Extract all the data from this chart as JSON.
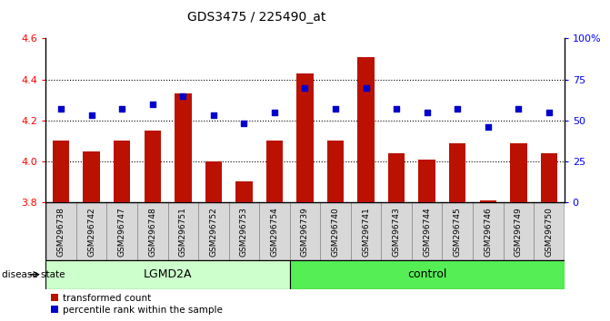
{
  "title": "GDS3475 / 225490_at",
  "samples": [
    "GSM296738",
    "GSM296742",
    "GSM296747",
    "GSM296748",
    "GSM296751",
    "GSM296752",
    "GSM296753",
    "GSM296754",
    "GSM296739",
    "GSM296740",
    "GSM296741",
    "GSM296743",
    "GSM296744",
    "GSM296745",
    "GSM296746",
    "GSM296749",
    "GSM296750"
  ],
  "transformed_count": [
    4.1,
    4.05,
    4.1,
    4.15,
    4.33,
    4.0,
    3.9,
    4.1,
    4.43,
    4.1,
    4.51,
    4.04,
    4.01,
    4.09,
    3.81,
    4.09,
    4.04
  ],
  "percentile_rank": [
    57,
    53,
    57,
    60,
    65,
    53,
    48,
    55,
    70,
    57,
    70,
    57,
    55,
    57,
    46,
    57,
    55
  ],
  "groups": [
    {
      "name": "LGMD2A",
      "start": 0,
      "end": 7,
      "color": "#ccffcc"
    },
    {
      "name": "control",
      "start": 8,
      "end": 16,
      "color": "#55ee55"
    }
  ],
  "ylim_left": [
    3.8,
    4.6
  ],
  "ylim_right": [
    0,
    100
  ],
  "bar_color": "#bb1100",
  "dot_color": "#0000cc",
  "bar_width": 0.55,
  "baseline": 3.8,
  "left_yticks": [
    3.8,
    4.0,
    4.2,
    4.4,
    4.6
  ],
  "right_yticks": [
    0,
    25,
    50,
    75,
    100
  ],
  "right_yticklabels": [
    "0",
    "25",
    "50",
    "75",
    "100%"
  ],
  "grid_yvals": [
    4.0,
    4.2,
    4.4
  ],
  "label_fontsize": 6.5,
  "group_fontsize": 9,
  "title_fontsize": 10
}
